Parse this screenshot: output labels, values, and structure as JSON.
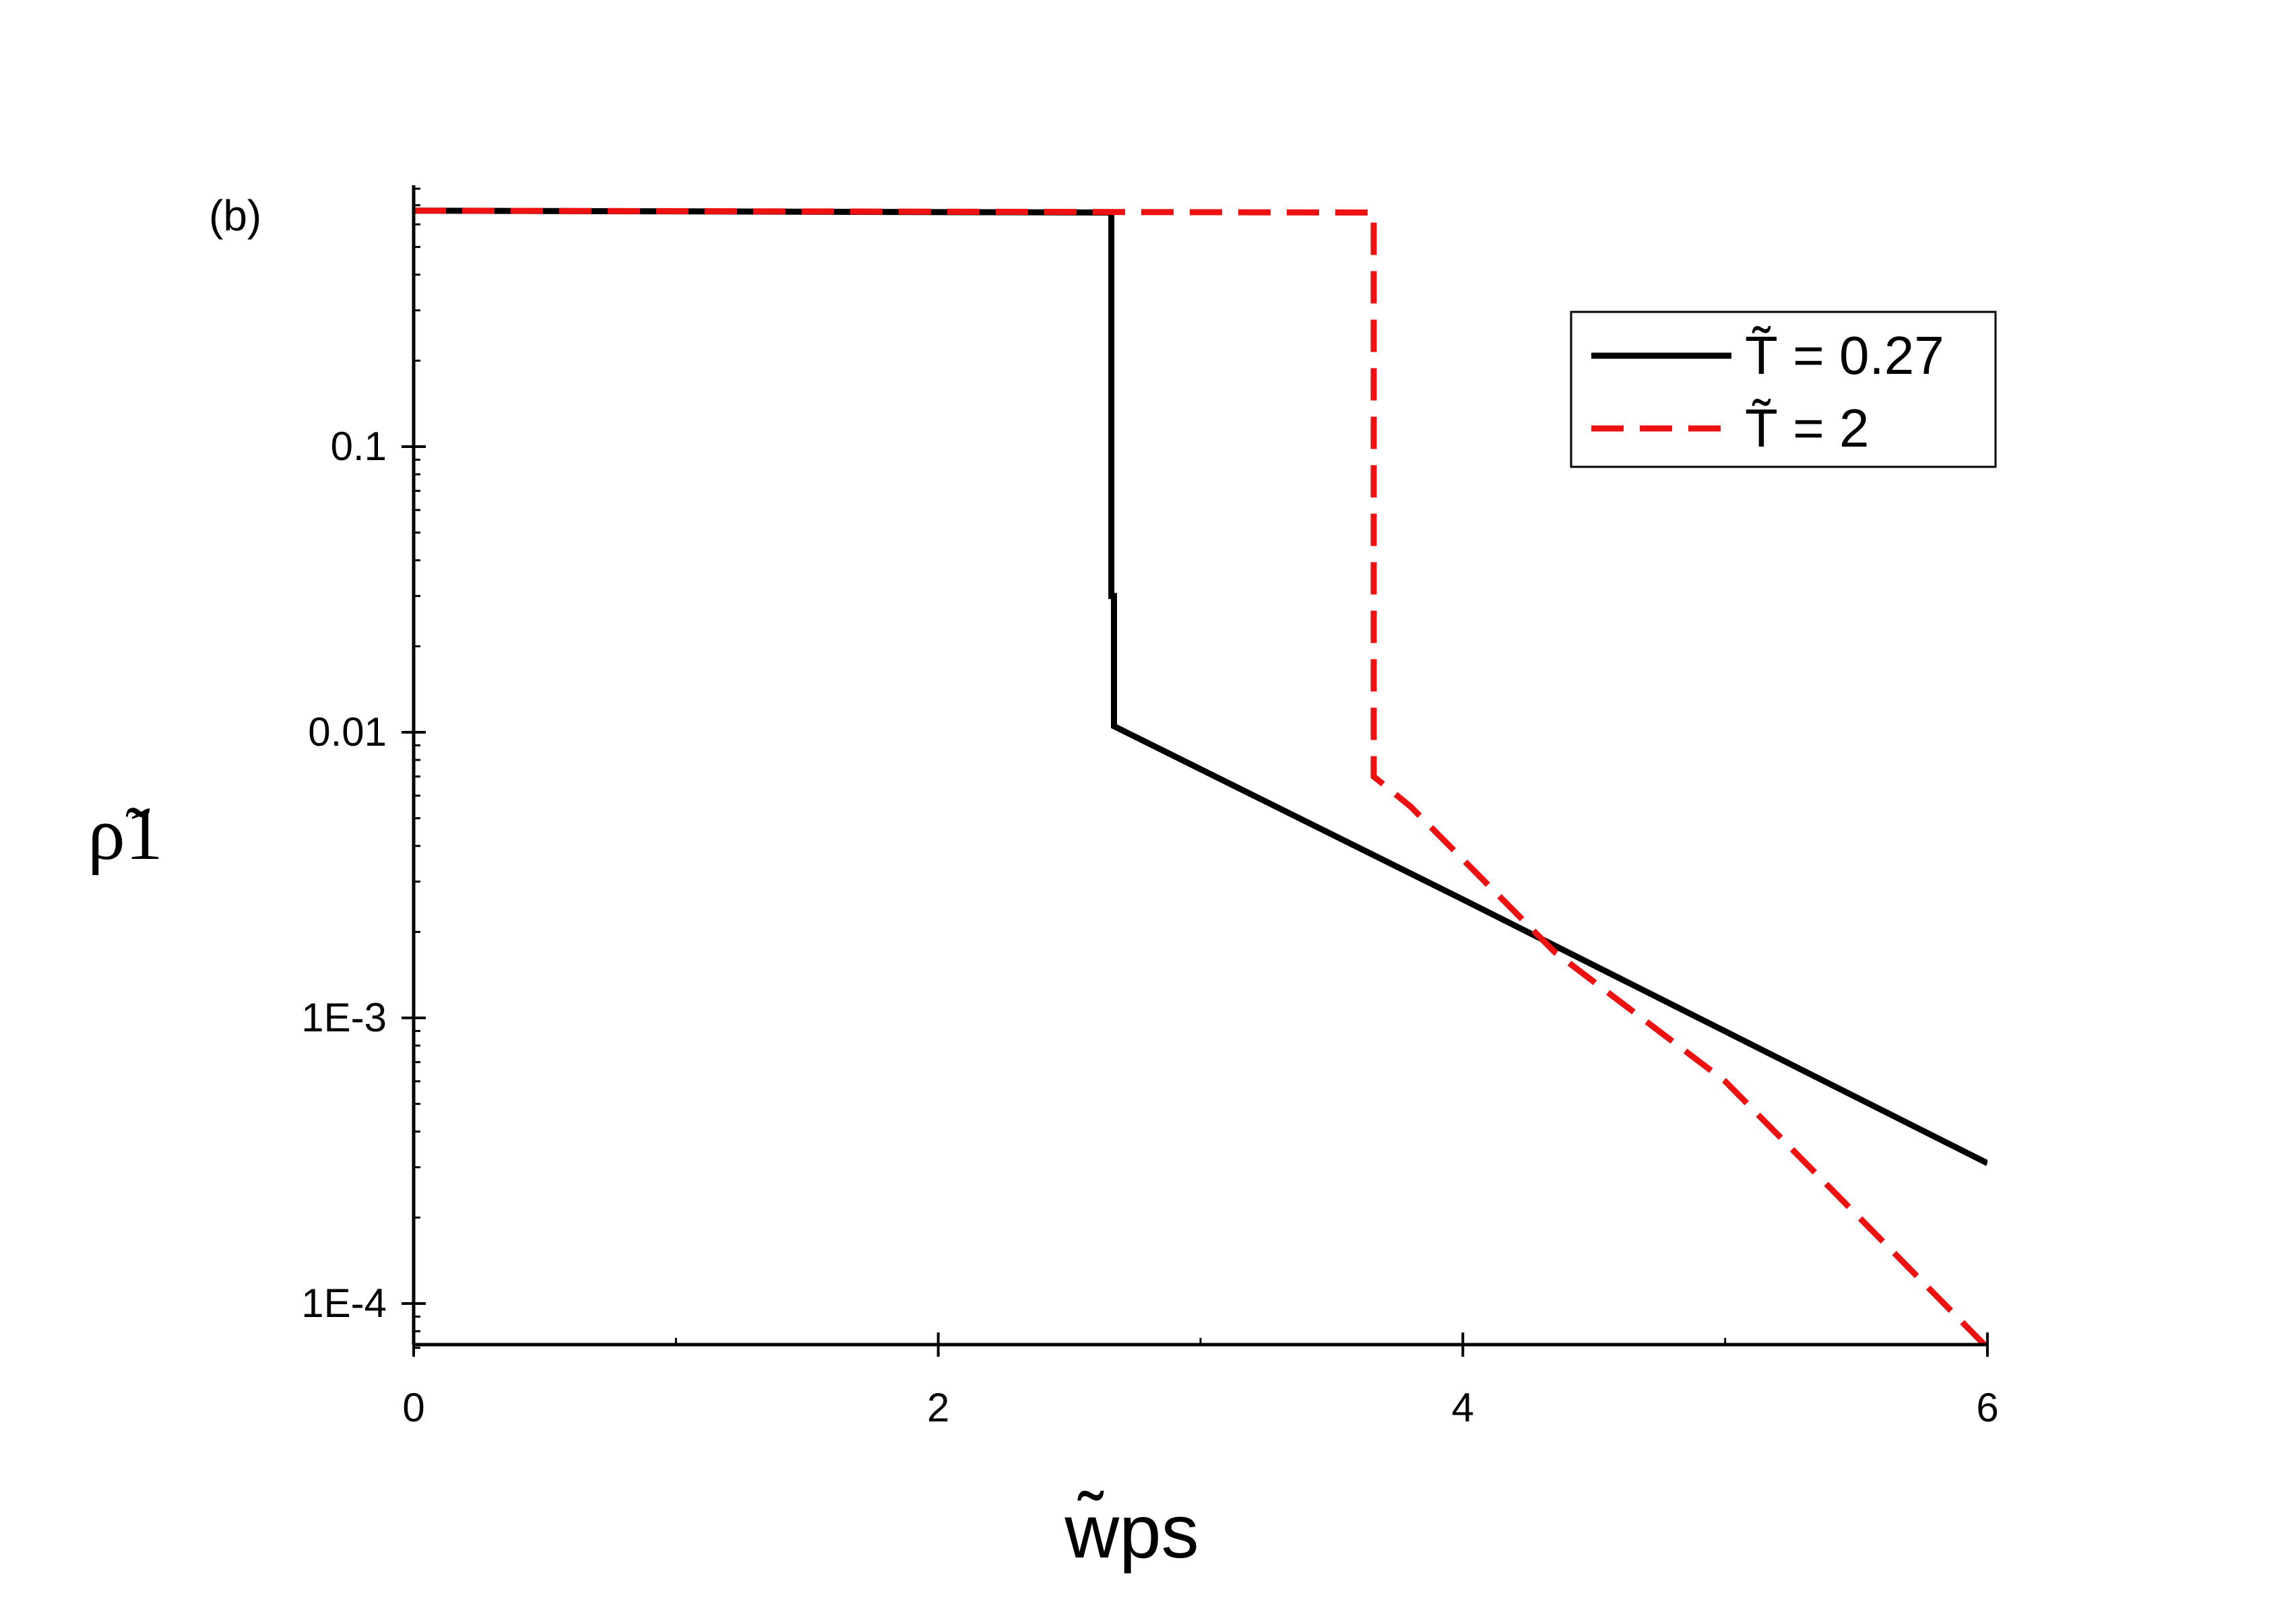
{
  "chart_data": {
    "type": "line",
    "panel_label": "(b)",
    "xlabel": "w̃ps",
    "ylabel": "ρ̃1",
    "xlim": [
      0,
      6
    ],
    "ylim": [
      7e-05,
      0.8
    ],
    "yscale": "log",
    "xticks": [
      0,
      2,
      4,
      6
    ],
    "xtick_labels": [
      "0",
      "2",
      "4",
      "6"
    ],
    "yticks": [
      0.0001,
      0.001,
      0.01,
      0.1
    ],
    "ytick_labels": [
      "1E-4",
      "1E-3",
      "0.01",
      "0.1"
    ],
    "legend_position": "top-right",
    "series": [
      {
        "name": "T̃ = 0.27",
        "color": "#000000",
        "style": "solid",
        "x": [
          0,
          2.66,
          2.66,
          2.67,
          2.67,
          4,
          6
        ],
        "y": [
          0.67,
          0.66,
          0.03,
          0.03,
          0.0105,
          0.0026,
          0.00031
        ]
      },
      {
        "name": "T̃ = 2",
        "color": "#ee1111",
        "style": "dashed",
        "x": [
          0,
          3.66,
          3.66,
          3.66,
          3.8,
          4.35,
          5,
          6
        ],
        "y": [
          0.67,
          0.66,
          0.5,
          0.007,
          0.0055,
          0.0017,
          0.0006,
          7e-05
        ]
      }
    ]
  }
}
